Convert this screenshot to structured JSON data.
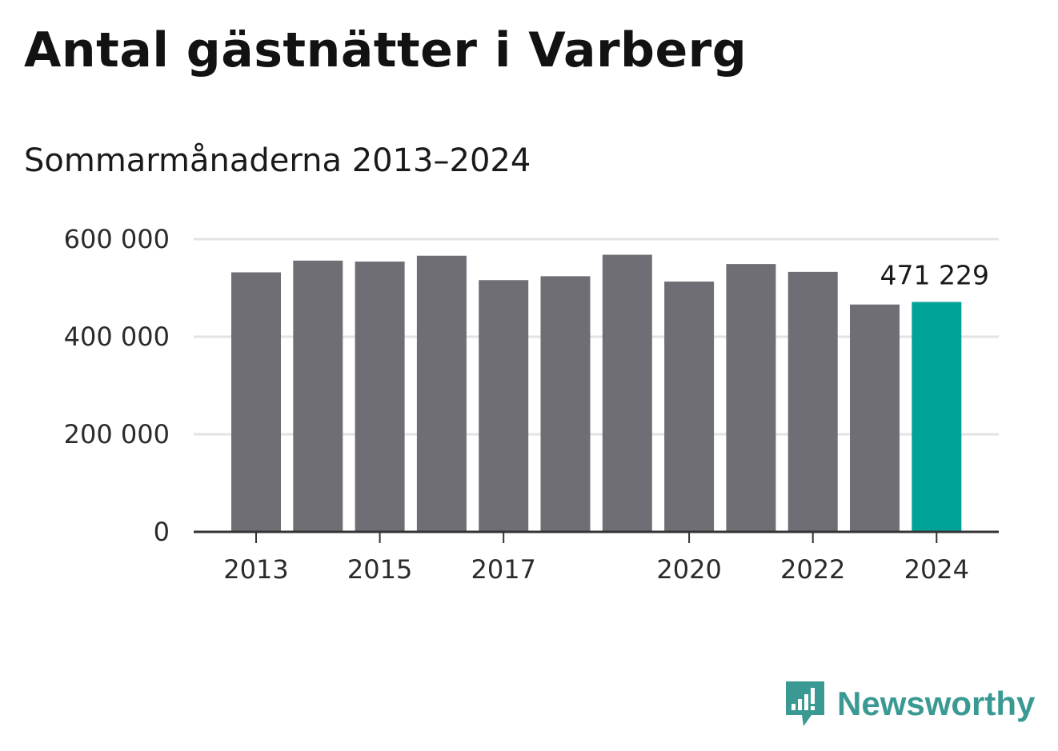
{
  "title": "Antal gästnätter i Varberg",
  "subtitle": "Sommarmånaderna 2013–2024",
  "brand": {
    "name": "Newsworthy",
    "icon": "newsworthy-chart-bubble-icon",
    "color": "#3a9a93"
  },
  "colors": {
    "bar": "#6f6e75",
    "highlight": "#00a398",
    "grid": "#e3e3e3",
    "axis": "#333333"
  },
  "chart_data": {
    "type": "bar",
    "categories": [
      "2013",
      "2014",
      "2015",
      "2016",
      "2017",
      "2018",
      "2019",
      "2020",
      "2021",
      "2022",
      "2023",
      "2024"
    ],
    "values": [
      532000,
      556000,
      554000,
      566000,
      516000,
      524000,
      568000,
      513000,
      549000,
      533000,
      466000,
      471229
    ],
    "highlight_index": 11,
    "data_label": "471 229",
    "y_ticks": [
      0,
      200000,
      400000,
      600000
    ],
    "y_tick_labels": [
      "0",
      "200 000",
      "400 000",
      "600 000"
    ],
    "x_tick_labels": [
      "2013",
      "2015",
      "2017",
      "2020",
      "2022",
      "2024"
    ],
    "ylim": [
      0,
      600000
    ],
    "grid": true,
    "legend": "none",
    "xlabel": "",
    "ylabel": ""
  }
}
